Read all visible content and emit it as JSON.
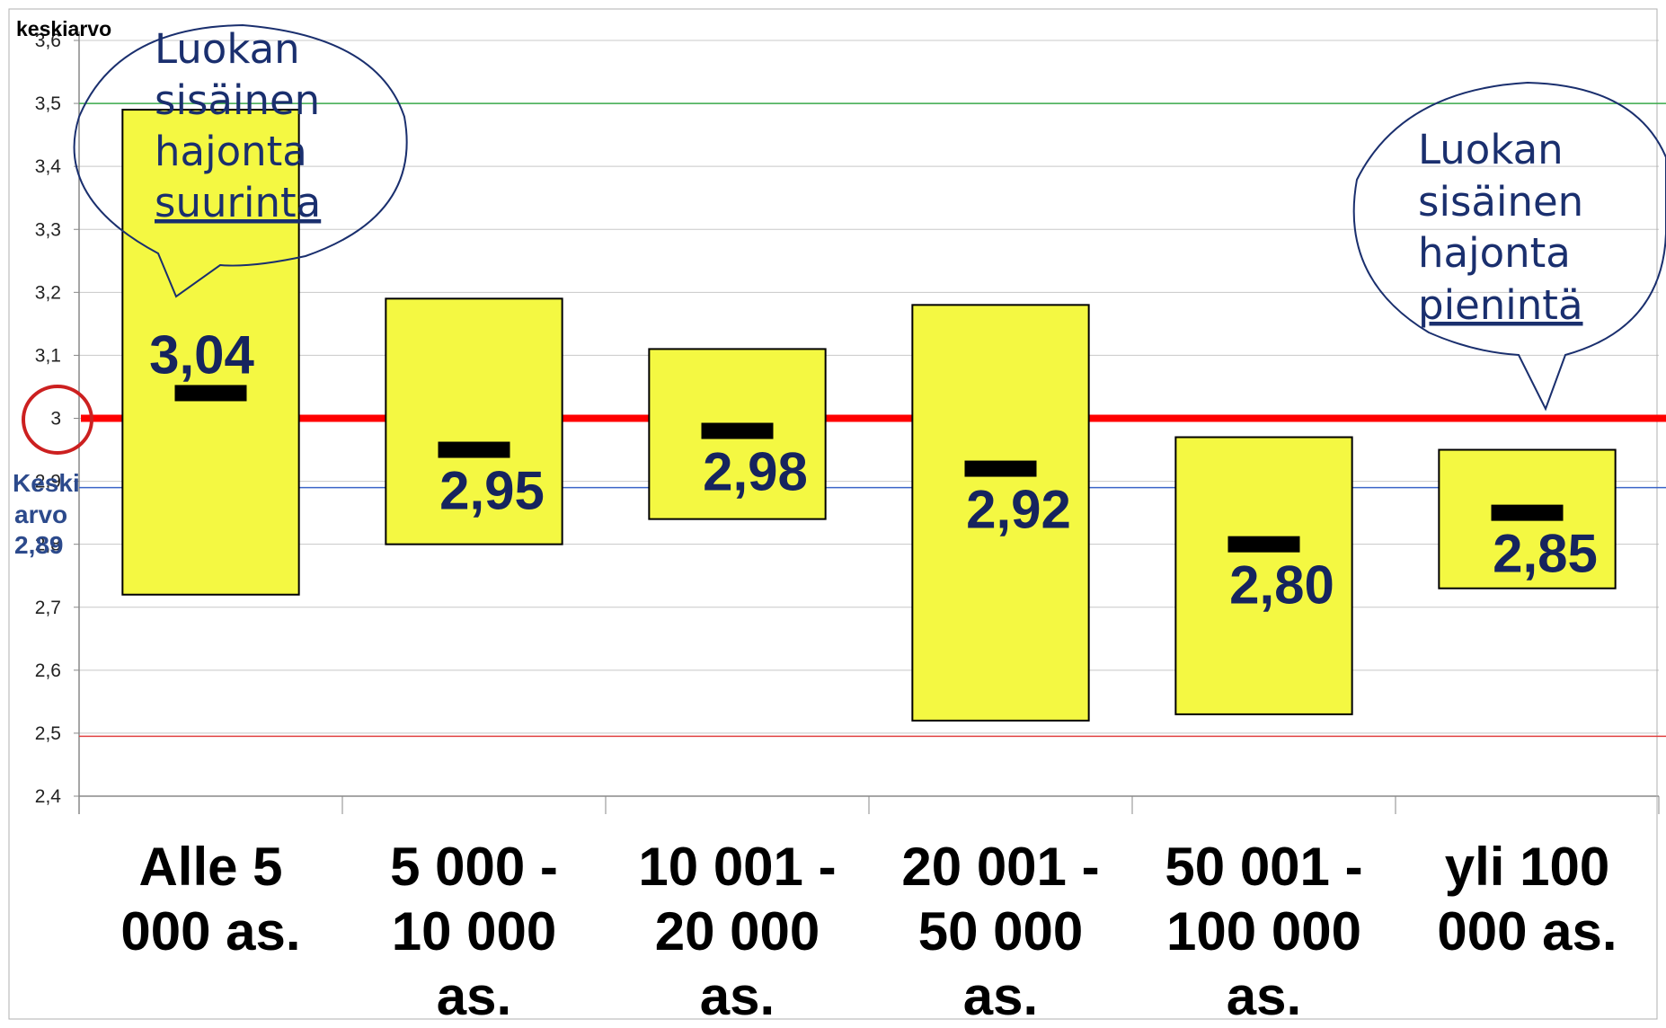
{
  "chart_data": {
    "type": "bar",
    "ylabel": "keskiarvo",
    "ylim": [
      2.4,
      3.6
    ],
    "yticks": [
      "2,4",
      "2,5",
      "2,6",
      "2,7",
      "2,8",
      "2,9",
      "3",
      "3,1",
      "3,2",
      "3,3",
      "3,4",
      "3,5",
      "3,6"
    ],
    "categories": [
      [
        "Alle 5",
        "000 as."
      ],
      [
        "5 000 -",
        "10 000",
        "as."
      ],
      [
        "10 001 -",
        "20 000",
        "as."
      ],
      [
        "20 001 -",
        "50 000",
        "as."
      ],
      [
        "50 001 -",
        "100 000",
        "as."
      ],
      [
        "yli 100",
        "000 as."
      ]
    ],
    "ranges": [
      {
        "low": 2.72,
        "high": 3.49
      },
      {
        "low": 2.8,
        "high": 3.19
      },
      {
        "low": 2.84,
        "high": 3.11
      },
      {
        "low": 2.52,
        "high": 3.18
      },
      {
        "low": 2.53,
        "high": 2.97
      },
      {
        "low": 2.73,
        "high": 2.95
      }
    ],
    "means": [
      3.04,
      2.95,
      2.98,
      2.92,
      2.8,
      2.85
    ],
    "mean_labels": [
      "3,04",
      "2,95",
      "2,98",
      "2,92",
      "2,80",
      "2,85"
    ],
    "reference_lines": [
      {
        "value": 3.0,
        "color": "#ff0000",
        "style": "thick"
      },
      {
        "value": 2.89,
        "color": "#3a64c8",
        "style": "thin"
      },
      {
        "value": 3.5,
        "color": "#3aaa4a",
        "style": "thin"
      },
      {
        "value": 2.495,
        "color": "#e04040",
        "style": "thin"
      }
    ],
    "overall_mean_label": [
      "Keski",
      "arvo",
      "2,89"
    ],
    "grid": true
  },
  "callouts": {
    "largest": {
      "lines": [
        "Luokan",
        "sisäinen",
        "hajonta"
      ],
      "emphasis": "suurinta"
    },
    "smallest": {
      "lines": [
        "Luokan",
        "sisäinen",
        "hajonta"
      ],
      "emphasis": "pienintä"
    }
  },
  "colors": {
    "box_fill": "#f4f842",
    "box_stroke": "#000000",
    "mean_marker": "#000000",
    "value_text": "#16245e",
    "bubble_stroke": "#1a2f6e",
    "highlight_circle": "#cc2020"
  }
}
